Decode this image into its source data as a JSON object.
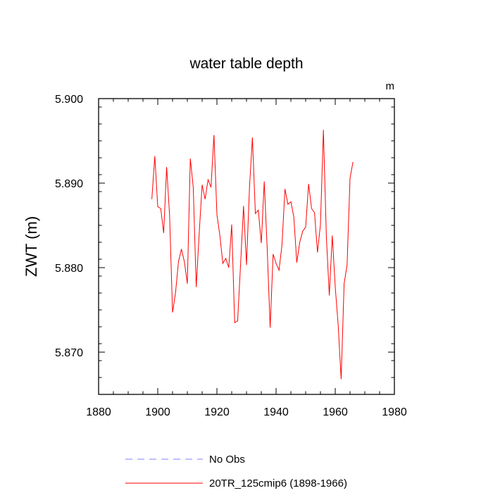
{
  "chart_data": {
    "type": "line",
    "title": "water table depth",
    "units_label": "m",
    "xlabel": "",
    "ylabel": "ZWT  (m)",
    "xlim": [
      1880,
      1980
    ],
    "ylim": [
      5.865,
      5.9
    ],
    "xticks": [
      1880,
      1900,
      1920,
      1940,
      1960,
      1980
    ],
    "yticks": [
      5.87,
      5.88,
      5.89,
      5.9
    ],
    "ytick_labels": [
      "5.870",
      "5.880",
      "5.890",
      "5.900"
    ],
    "grid": false,
    "legend_position": "bottom",
    "series": [
      {
        "name": "No Obs",
        "color": "#8080ff",
        "style": "dashed",
        "x": [],
        "y": []
      },
      {
        "name": "20TR_125cmip6 (1898-1966)",
        "color": "#ff0000",
        "style": "solid",
        "x": [
          1898,
          1899,
          1900,
          1901,
          1902,
          1903,
          1904,
          1905,
          1906,
          1907,
          1908,
          1909,
          1910,
          1911,
          1912,
          1913,
          1914,
          1915,
          1916,
          1917,
          1918,
          1919,
          1920,
          1921,
          1922,
          1923,
          1924,
          1925,
          1926,
          1927,
          1928,
          1929,
          1930,
          1931,
          1932,
          1933,
          1934,
          1935,
          1936,
          1937,
          1938,
          1939,
          1940,
          1941,
          1942,
          1943,
          1944,
          1945,
          1946,
          1947,
          1948,
          1949,
          1950,
          1951,
          1952,
          1953,
          1954,
          1955,
          1956,
          1957,
          1958,
          1959,
          1960,
          1961,
          1962,
          1963,
          1964,
          1965,
          1966
        ],
        "y": [
          5.8881,
          5.8932,
          5.8872,
          5.887,
          5.8841,
          5.8919,
          5.8862,
          5.8747,
          5.877,
          5.8807,
          5.8822,
          5.8807,
          5.8781,
          5.8929,
          5.8895,
          5.8777,
          5.884,
          5.8898,
          5.8881,
          5.8904,
          5.8895,
          5.8957,
          5.8863,
          5.8838,
          5.8805,
          5.8811,
          5.88,
          5.8851,
          5.8735,
          5.8737,
          5.8804,
          5.8873,
          5.8803,
          5.8894,
          5.8954,
          5.8864,
          5.8868,
          5.8829,
          5.8902,
          5.8822,
          5.8729,
          5.8816,
          5.8805,
          5.8797,
          5.8827,
          5.8893,
          5.8875,
          5.8878,
          5.886,
          5.8806,
          5.883,
          5.8843,
          5.8848,
          5.8899,
          5.887,
          5.8865,
          5.8818,
          5.8851,
          5.8963,
          5.8836,
          5.8767,
          5.8838,
          5.8777,
          5.8732,
          5.8668,
          5.8781,
          5.8803,
          5.8906,
          5.8925
        ]
      }
    ]
  }
}
